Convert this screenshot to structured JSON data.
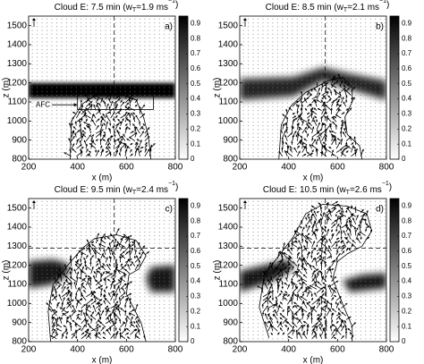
{
  "chart_data": [
    {
      "type": "vector_field",
      "title": [
        "Cloud E: 7.5 min (w",
        "T",
        "=1.9 ms",
        "−1",
        ")"
      ],
      "panel_label": "a)",
      "annotation": "AFC",
      "xlabel": "x (m)",
      "ylabel": "z (m)",
      "xlim": [
        200,
        800
      ],
      "xticks": [
        200,
        400,
        600,
        800
      ],
      "ylim": [
        800,
        1550
      ],
      "yticks": [
        800,
        900,
        1000,
        1100,
        1200,
        1300,
        1400,
        1500
      ],
      "colorbar": {
        "lim": [
          0,
          0.95
        ],
        "ticks": [
          0,
          0.1,
          0.2,
          0.3,
          0.4,
          0.5,
          0.6,
          0.7,
          0.8,
          0.9
        ]
      },
      "dashed_x": 550
    },
    {
      "type": "vector_field",
      "title": [
        "Cloud E: 8.5 min (w",
        "T",
        "=2.1 ms",
        "−1",
        ")"
      ],
      "panel_label": "b)",
      "xlabel": "x (m)",
      "ylabel": "z (m)",
      "xlim": [
        200,
        800
      ],
      "xticks": [
        200,
        400,
        600,
        800
      ],
      "ylim": [
        800,
        1550
      ],
      "yticks": [
        800,
        900,
        1000,
        1100,
        1200,
        1300,
        1400,
        1500
      ],
      "colorbar": {
        "lim": [
          0,
          0.95
        ],
        "ticks": [
          0,
          0.1,
          0.2,
          0.3,
          0.4,
          0.5,
          0.6,
          0.7,
          0.8,
          0.9
        ]
      },
      "dashed_x": 550
    },
    {
      "type": "vector_field",
      "title": [
        "Cloud E: 9.5 min (w",
        "T",
        "=2.4 ms",
        "−1",
        ")"
      ],
      "panel_label": "c)",
      "xlabel": "x (m)",
      "ylabel": "z (m)",
      "xlim": [
        200,
        800
      ],
      "xticks": [
        200,
        400,
        600,
        800
      ],
      "ylim": [
        800,
        1550
      ],
      "yticks": [
        800,
        900,
        1000,
        1100,
        1200,
        1300,
        1400,
        1500
      ],
      "colorbar": {
        "lim": [
          0,
          0.95
        ],
        "ticks": [
          0,
          0.1,
          0.2,
          0.3,
          0.4,
          0.5,
          0.6,
          0.7,
          0.8,
          0.9
        ]
      },
      "dashed_x": 550,
      "dashed_y": 1290
    },
    {
      "type": "vector_field",
      "title": [
        "Cloud E: 10.5 min (w",
        "T",
        "=2.6 ms",
        "−1",
        ")"
      ],
      "panel_label": "d)",
      "xlabel": "x (m)",
      "ylabel": "z (m)",
      "xlim": [
        200,
        800
      ],
      "xticks": [
        200,
        400,
        600,
        800
      ],
      "ylim": [
        800,
        1550
      ],
      "yticks": [
        800,
        900,
        1000,
        1100,
        1200,
        1300,
        1400,
        1500
      ],
      "colorbar": {
        "lim": [
          0,
          0.95
        ],
        "ticks": [
          0,
          0.1,
          0.2,
          0.3,
          0.4,
          0.5,
          0.6,
          0.7,
          0.8,
          0.9
        ]
      },
      "dashed_x": 550,
      "dashed_y": 1290
    }
  ]
}
